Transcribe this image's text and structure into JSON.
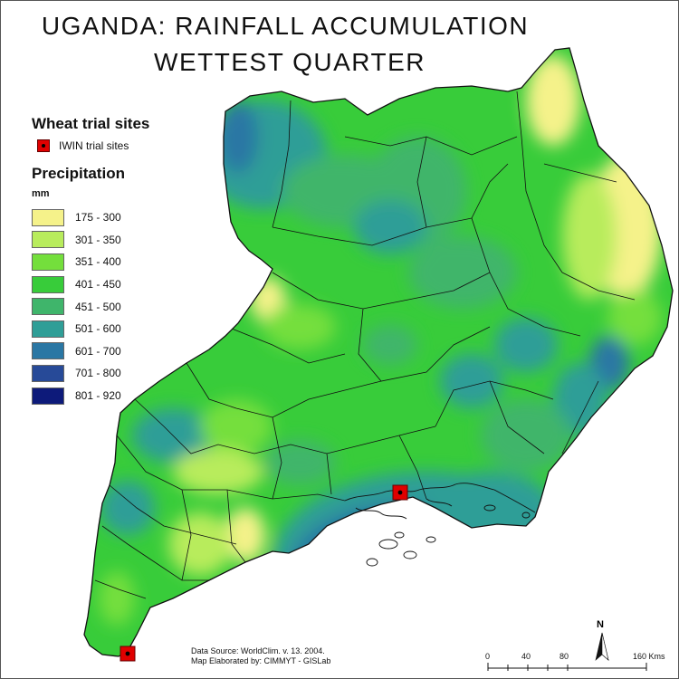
{
  "title": {
    "line1": "UGANDA:  RAINFALL  ACCUMULATION",
    "line2": "WETTEST QUARTER"
  },
  "legend": {
    "sites_heading": "Wheat trial sites",
    "site_label": "IWIN trial sites",
    "precip_heading": "Precipitation",
    "unit": "mm",
    "classes": [
      {
        "label": "175 - 300",
        "color": "#f5f28a"
      },
      {
        "label": "301 - 350",
        "color": "#b8ec5c"
      },
      {
        "label": "351 - 400",
        "color": "#74df3c"
      },
      {
        "label": "401 - 450",
        "color": "#38cc3a"
      },
      {
        "label": "451 - 500",
        "color": "#3fb56b"
      },
      {
        "label": "501 - 600",
        "color": "#2f9e97"
      },
      {
        "label": "601 - 700",
        "color": "#2a77a4"
      },
      {
        "label": "701 - 800",
        "color": "#274a98"
      },
      {
        "label": "801 - 920",
        "color": "#0d1a7a"
      }
    ]
  },
  "sites": [
    {
      "name": "site-kampala-area"
    },
    {
      "name": "site-southwest"
    }
  ],
  "source": {
    "line1": "Data Source: WorldClim. v. 13.  2004.",
    "line2": "Map Elaborated by:  CIMMYT - GISLab"
  },
  "scale": {
    "ticks": [
      "0",
      "40",
      "80",
      "160 Kms"
    ]
  },
  "north_label": "N"
}
